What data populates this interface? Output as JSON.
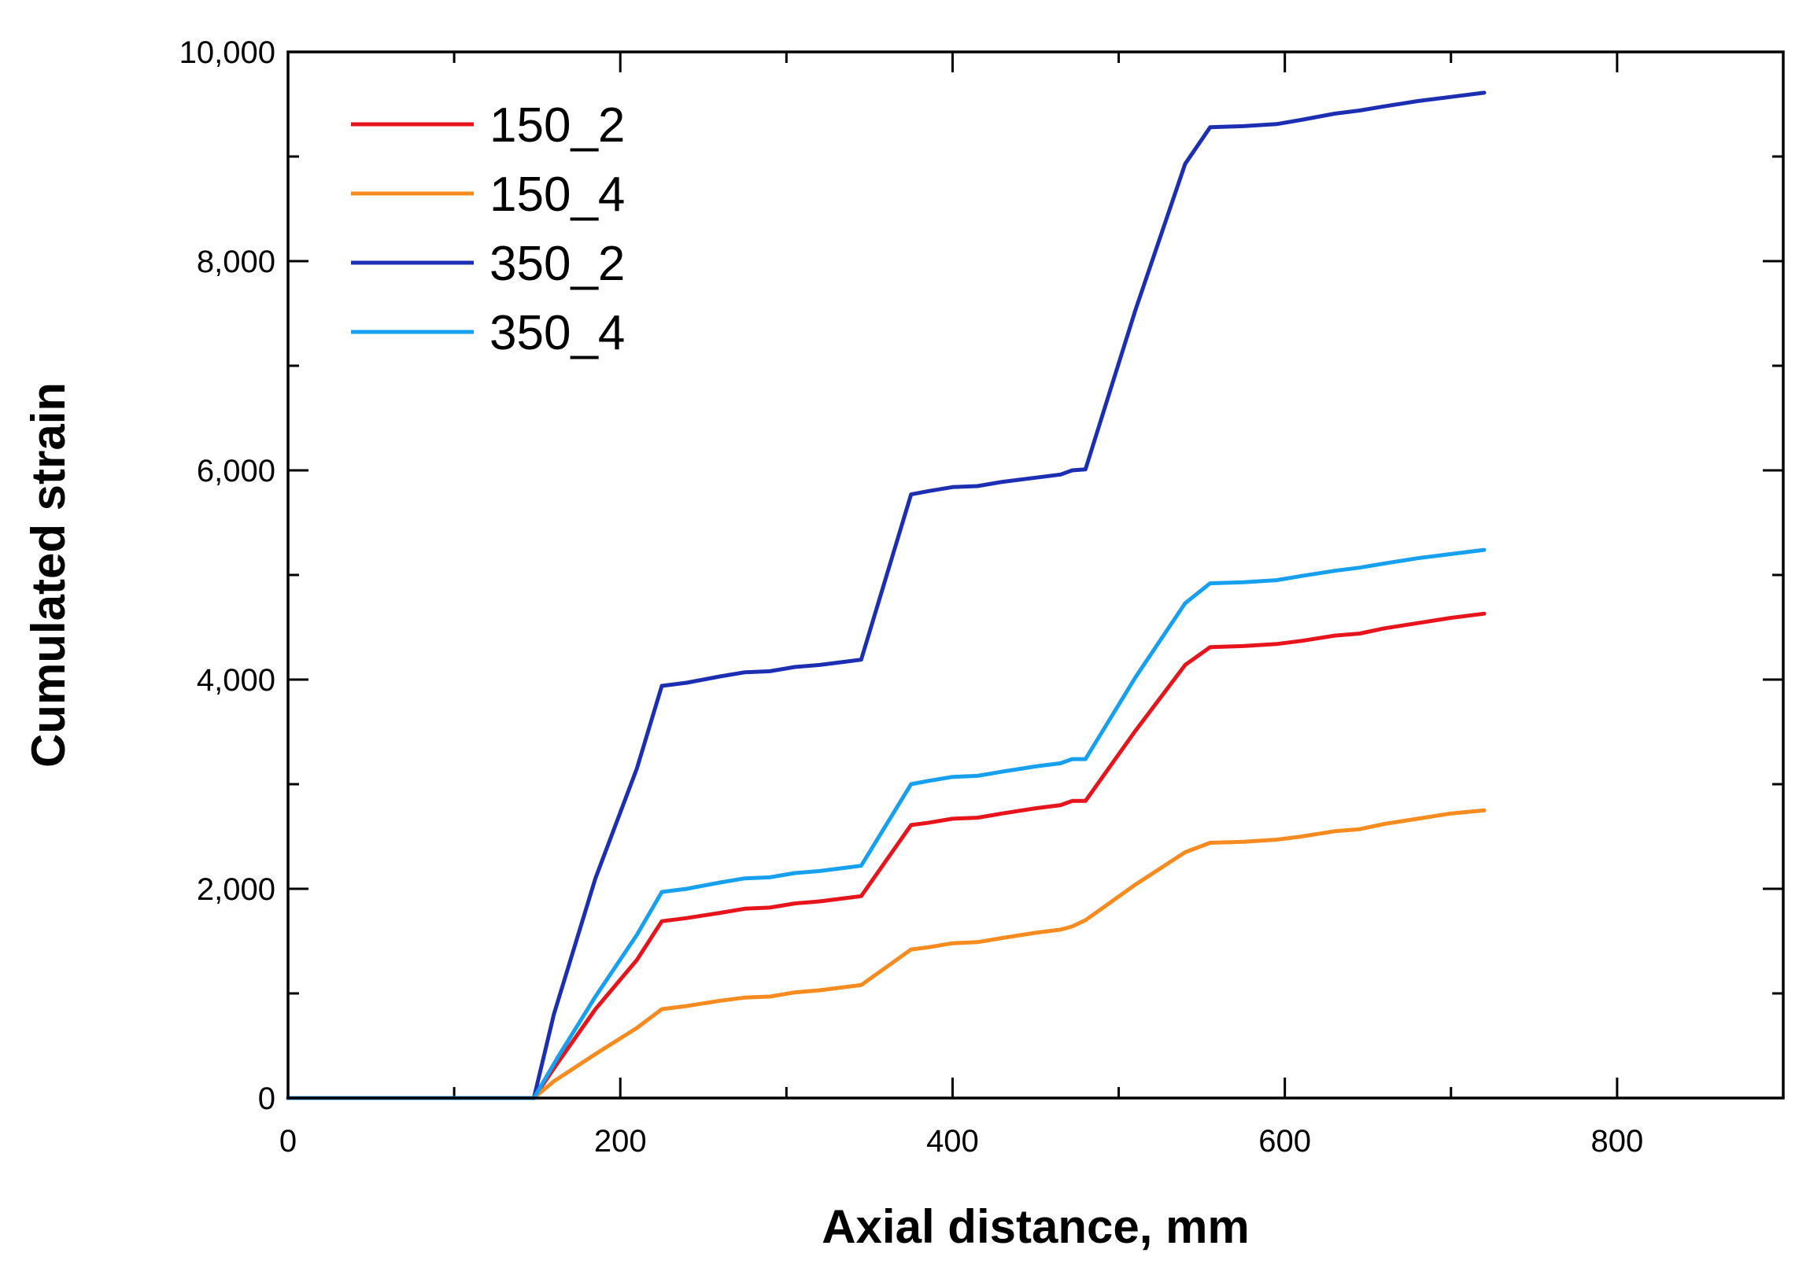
{
  "chart_data": {
    "type": "line",
    "title": "",
    "xlabel": "Axial distance, mm",
    "ylabel": "Cumulated strain",
    "xlim": [
      0,
      900
    ],
    "ylim": [
      0,
      10000
    ],
    "x_ticks": [
      0,
      200,
      400,
      600,
      800
    ],
    "x_tick_labels": [
      "0",
      "200",
      "400",
      "600",
      "800"
    ],
    "y_ticks": [
      0,
      2000,
      4000,
      6000,
      8000,
      10000
    ],
    "y_tick_labels": [
      "0",
      "2,000",
      "4,000",
      "6,000",
      "8,000",
      "10,000"
    ],
    "x_minor_ticks": [
      100,
      300,
      500,
      700
    ],
    "y_minor_ticks": [
      1000,
      3000,
      5000,
      7000,
      9000
    ],
    "grid": false,
    "legend_position": "top-left",
    "series": [
      {
        "name": "150_2",
        "color": "#e8141b",
        "x": [
          0,
          148,
          162,
          185,
          210,
          225,
          240,
          260,
          275,
          290,
          305,
          320,
          335,
          345,
          375,
          385,
          400,
          415,
          430,
          450,
          465,
          472,
          480,
          510,
          540,
          555,
          575,
          595,
          610,
          630,
          645,
          660,
          680,
          700,
          720
        ],
        "y": [
          0,
          0,
          330,
          850,
          1320,
          1690,
          1720,
          1770,
          1810,
          1820,
          1860,
          1880,
          1910,
          1930,
          2610,
          2630,
          2670,
          2680,
          2720,
          2770,
          2800,
          2840,
          2840,
          3510,
          4140,
          4310,
          4320,
          4340,
          4370,
          4420,
          4440,
          4490,
          4540,
          4590,
          4630
        ]
      },
      {
        "name": "150_4",
        "color": "#f78b1f",
        "x": [
          0,
          148,
          160,
          185,
          210,
          225,
          240,
          260,
          275,
          290,
          305,
          320,
          335,
          345,
          375,
          385,
          400,
          415,
          430,
          450,
          465,
          472,
          480,
          510,
          540,
          555,
          575,
          595,
          610,
          630,
          645,
          660,
          680,
          700,
          720
        ],
        "y": [
          0,
          0,
          160,
          420,
          670,
          850,
          880,
          930,
          960,
          970,
          1010,
          1030,
          1060,
          1080,
          1420,
          1440,
          1480,
          1490,
          1530,
          1580,
          1610,
          1640,
          1700,
          2040,
          2350,
          2440,
          2450,
          2470,
          2500,
          2550,
          2570,
          2620,
          2670,
          2720,
          2750
        ]
      },
      {
        "name": "350_2",
        "color": "#1c2fb3",
        "x": [
          0,
          148,
          160,
          185,
          210,
          225,
          240,
          260,
          275,
          290,
          305,
          320,
          335,
          345,
          375,
          385,
          400,
          415,
          430,
          450,
          465,
          472,
          480,
          510,
          540,
          555,
          575,
          595,
          610,
          630,
          645,
          660,
          680,
          700,
          720
        ],
        "y": [
          0,
          0,
          800,
          2100,
          3150,
          3940,
          3970,
          4030,
          4070,
          4080,
          4120,
          4140,
          4170,
          4190,
          5770,
          5800,
          5840,
          5850,
          5890,
          5930,
          5960,
          6000,
          6010,
          7530,
          8930,
          9280,
          9290,
          9310,
          9350,
          9410,
          9440,
          9480,
          9530,
          9570,
          9610
        ]
      },
      {
        "name": "350_4",
        "color": "#16a0ef",
        "x": [
          0,
          148,
          162,
          185,
          210,
          225,
          240,
          260,
          275,
          290,
          305,
          320,
          335,
          345,
          375,
          385,
          400,
          415,
          430,
          450,
          465,
          472,
          480,
          510,
          540,
          555,
          575,
          595,
          610,
          630,
          645,
          660,
          680,
          700,
          720
        ],
        "y": [
          0,
          0,
          380,
          970,
          1560,
          1970,
          2000,
          2060,
          2100,
          2110,
          2150,
          2170,
          2200,
          2220,
          3000,
          3030,
          3070,
          3080,
          3120,
          3170,
          3200,
          3240,
          3240,
          4020,
          4730,
          4920,
          4930,
          4950,
          4990,
          5040,
          5070,
          5110,
          5160,
          5200,
          5240
        ]
      }
    ]
  }
}
